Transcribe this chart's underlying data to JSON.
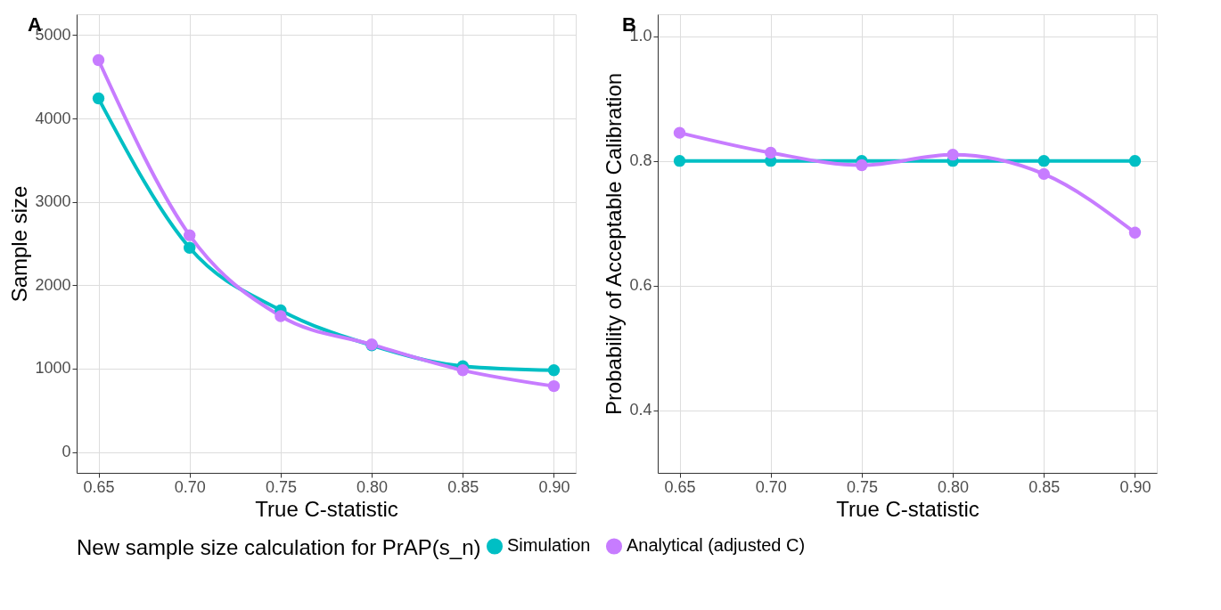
{
  "chart_data": [
    {
      "type": "line",
      "title": "A",
      "xlabel": "True C-statistic",
      "ylabel": "Sample size",
      "legend_title": "New sample size calculation for PrAP(s_n)",
      "legend": "bottom",
      "grid": true,
      "marker": "circle",
      "line_style": "solid",
      "x": [
        0.65,
        0.7,
        0.75,
        0.8,
        0.85,
        0.9
      ],
      "xlim": [
        0.638,
        0.912
      ],
      "xticks": [
        0.65,
        {
          "value": 0.7,
          "label": "0.70"
        },
        0.75,
        {
          "value": 0.8,
          "label": "0.80"
        },
        0.85,
        {
          "value": 0.9,
          "label": "0.90"
        }
      ],
      "ylim": [
        -250,
        5250
      ],
      "yticks": [
        0,
        1000,
        2000,
        3000,
        4000,
        5000
      ],
      "series": [
        {
          "name": "Simulation",
          "color": "#00bfc4",
          "values": [
            4240,
            2450,
            1700,
            1280,
            1030,
            980
          ]
        },
        {
          "name": "Analytical (adjusted C)",
          "color": "#c77cff",
          "values": [
            4700,
            2600,
            1630,
            1290,
            980,
            790
          ]
        }
      ]
    },
    {
      "type": "line",
      "title": "B",
      "xlabel": "True C-statistic",
      "ylabel": "Probability of Acceptable Calibration",
      "legend": "bottom",
      "grid": true,
      "marker": "circle",
      "line_style": "solid",
      "x": [
        0.65,
        0.7,
        0.75,
        0.8,
        0.85,
        0.9
      ],
      "xlim": [
        0.638,
        0.912
      ],
      "xticks": [
        0.65,
        {
          "value": 0.7,
          "label": "0.70"
        },
        0.75,
        {
          "value": 0.8,
          "label": "0.80"
        },
        0.85,
        {
          "value": 0.9,
          "label": "0.90"
        }
      ],
      "ylim": [
        0.3,
        1.035
      ],
      "yticks": [
        0.4,
        0.6,
        0.8,
        {
          "value": 1.0,
          "label": "1.0"
        }
      ],
      "series": [
        {
          "name": "Simulation",
          "color": "#00bfc4",
          "values": [
            0.8,
            0.8,
            0.8,
            0.8,
            0.8,
            0.8
          ]
        },
        {
          "name": "Analytical (adjusted C)",
          "color": "#c77cff",
          "values": [
            0.845,
            0.813,
            0.793,
            0.81,
            0.779,
            0.685
          ]
        }
      ]
    }
  ]
}
